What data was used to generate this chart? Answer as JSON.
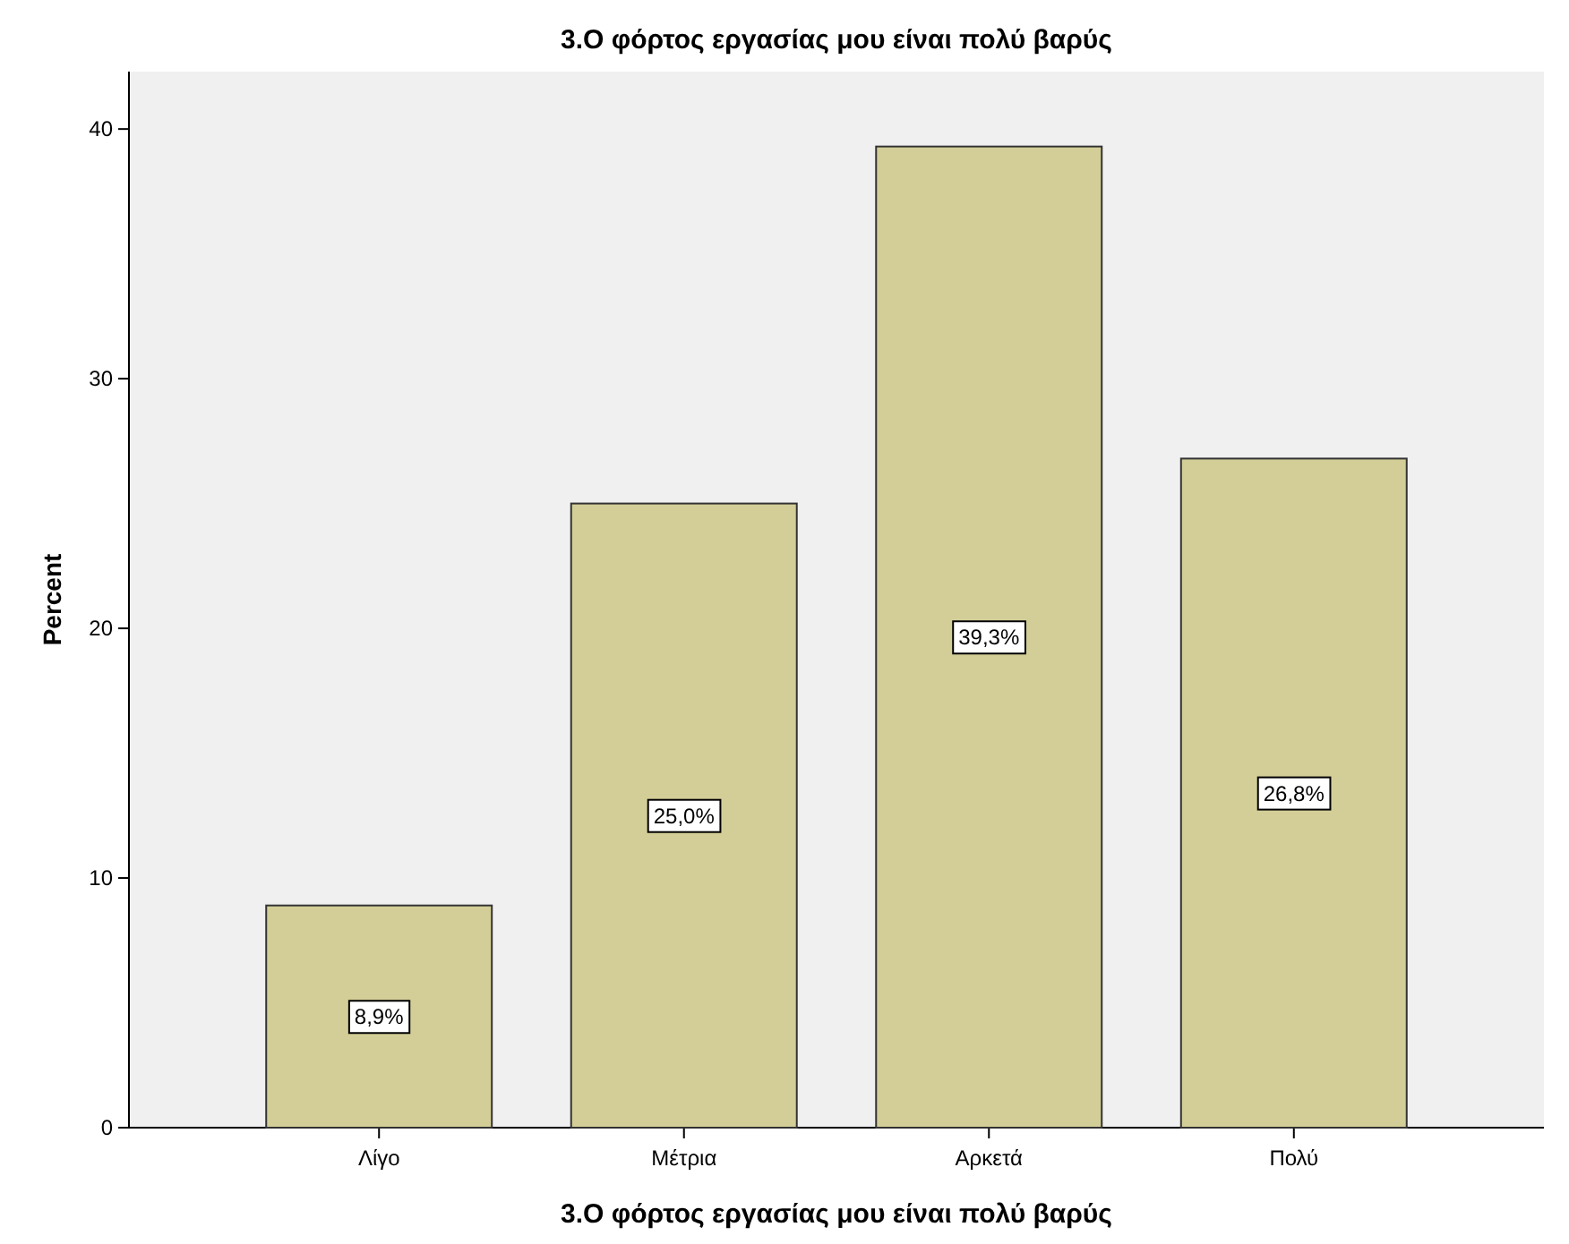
{
  "chart_data": {
    "type": "bar",
    "title": "3.Ο φόρτος εργασίας μου είναι πολύ βαρύς",
    "xlabel": "3.Ο φόρτος εργασίας μου είναι πολύ βαρύς",
    "ylabel": "Percent",
    "categories": [
      "Λίγο",
      "Μέτρια",
      "Αρκετά",
      "Πολύ"
    ],
    "values": [
      8.9,
      25.0,
      39.3,
      26.8
    ],
    "value_labels": [
      "8,9%",
      "25,0%",
      "39,3%",
      "26,8%"
    ],
    "color": "#d3ce97",
    "ylim": [
      0,
      42.3
    ],
    "yticks": [
      0,
      10,
      20,
      30,
      40
    ]
  }
}
